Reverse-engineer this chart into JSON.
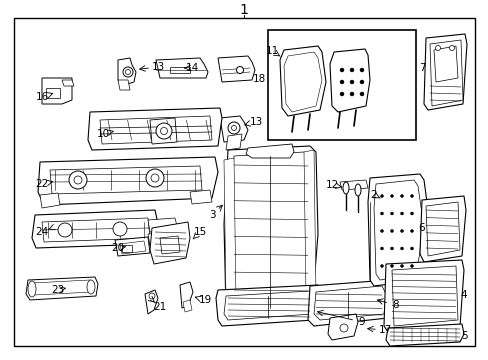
{
  "bg_color": "#ffffff",
  "line_color": "#000000",
  "border_color": "#000000",
  "figsize": [
    4.89,
    3.6
  ],
  "dpi": 100,
  "title": "1",
  "label_fontsize": 7.5,
  "title_fontsize": 10
}
